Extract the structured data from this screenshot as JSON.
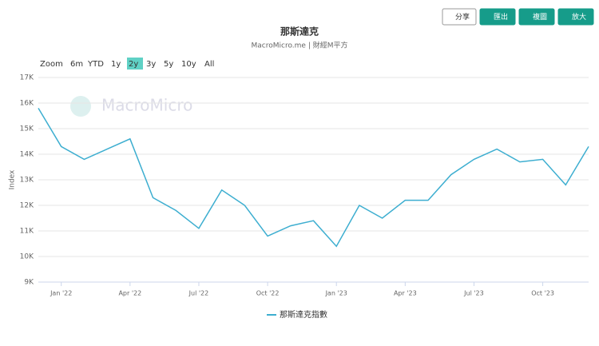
{
  "chart_data": {
    "type": "line",
    "title": "那斯達克",
    "subtitle": "MacroMicro.me | 財經M平方",
    "watermark": "MacroMicro",
    "y_label": "Index",
    "toolbar": [
      "分享",
      "匯出",
      "複圖",
      "放大"
    ],
    "range_buttons": [
      "Zoom",
      "6m",
      "YTD",
      "1y",
      "2y",
      "3y",
      "5y",
      "10y",
      "All"
    ],
    "active_range": "2y",
    "x": [
      "2021-12",
      "2022-01",
      "2022-02",
      "2022-03",
      "2022-04",
      "2022-05",
      "2022-06",
      "2022-07",
      "2022-08",
      "2022-09",
      "2022-10",
      "2022-11",
      "2022-12",
      "2023-01",
      "2023-02",
      "2023-03",
      "2023-04",
      "2023-05",
      "2023-06",
      "2023-07",
      "2023-08",
      "2023-09",
      "2023-10",
      "2023-11",
      "2023-12"
    ],
    "series": [
      {
        "name": "那斯達克指數",
        "color": "#3daed0",
        "values": [
          15800,
          14300,
          13800,
          14200,
          14600,
          12300,
          11800,
          11100,
          12600,
          12000,
          10800,
          11200,
          11400,
          10400,
          12000,
          11500,
          12200,
          12200,
          13200,
          13800,
          14200,
          13700,
          13800,
          12800,
          14300
        ]
      }
    ],
    "xlim": [
      "2021-12",
      "2023-12"
    ],
    "xticks": [
      {
        "value": "2022-01",
        "label": "Jan '22"
      },
      {
        "value": "2022-04",
        "label": "Apr '22"
      },
      {
        "value": "2022-07",
        "label": "Jul '22"
      },
      {
        "value": "2022-10",
        "label": "Oct '22"
      },
      {
        "value": "2023-01",
        "label": "Jan '23"
      },
      {
        "value": "2023-04",
        "label": "Apr '23"
      },
      {
        "value": "2023-07",
        "label": "Jul '23"
      },
      {
        "value": "2023-10",
        "label": "Oct '23"
      }
    ],
    "ylim": [
      9000,
      17000
    ],
    "yticks": [
      {
        "value": 9000,
        "label": "9K"
      },
      {
        "value": 10000,
        "label": "10K"
      },
      {
        "value": 11000,
        "label": "11K"
      },
      {
        "value": 12000,
        "label": "12K"
      },
      {
        "value": 13000,
        "label": "13K"
      },
      {
        "value": 14000,
        "label": "14K"
      },
      {
        "value": 15000,
        "label": "15K"
      },
      {
        "value": 16000,
        "label": "16K"
      },
      {
        "value": 17000,
        "label": "17K"
      }
    ],
    "grid": true
  }
}
